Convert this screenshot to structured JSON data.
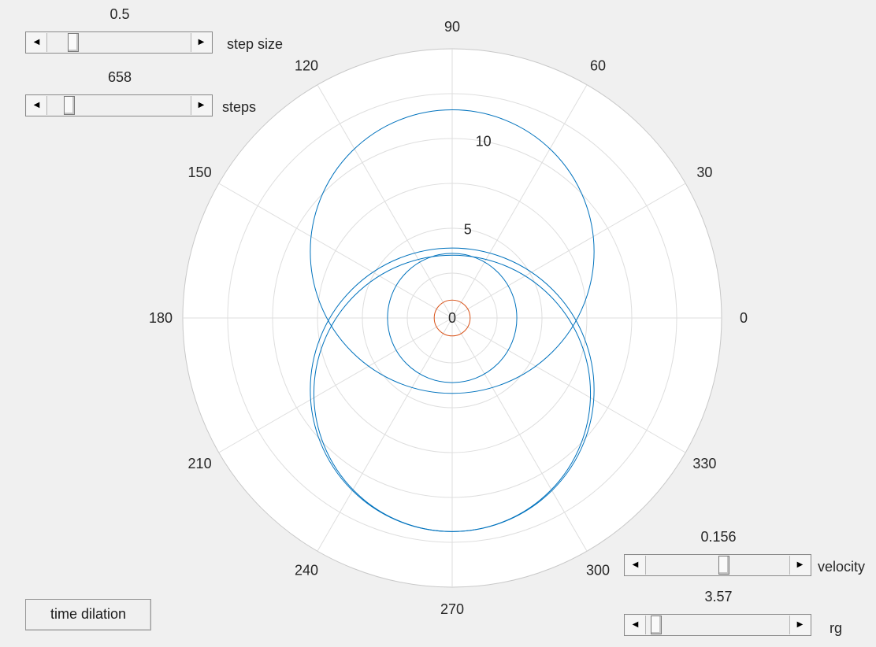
{
  "controls": {
    "step_size": {
      "value_text": "0.5",
      "caption": "step size",
      "position": 0.15
    },
    "steps": {
      "value_text": "658",
      "caption": "steps",
      "position": 0.12
    },
    "velocity": {
      "value_text": "0.156",
      "caption": "velocity",
      "position": 0.55
    },
    "rg": {
      "value_text": "3.57",
      "caption": "rg",
      "position": 0.03
    }
  },
  "buttons": {
    "time_dilation": "time dilation"
  },
  "colors": {
    "orbit": "#0072bd",
    "horizon": "#d95319",
    "grid": "#dedede",
    "axes_bg": "#ffffff",
    "figure_bg": "#f0f0f0"
  },
  "chart_data": {
    "type": "polar",
    "theta_ticks": [
      "0",
      "30",
      "60",
      "90",
      "120",
      "150",
      "180",
      "210",
      "240",
      "270",
      "300",
      "330"
    ],
    "r_ticks": [
      "0",
      "5",
      "10"
    ],
    "rlim": [
      0,
      15
    ],
    "grid": true,
    "series": [
      {
        "kind": "orbit",
        "segments": [
          {
            "cx": 0,
            "cy": 3.7,
            "r": 7.9
          },
          {
            "cx": 0,
            "cy": -4.2,
            "r": 7.7
          },
          {
            "cx": 0,
            "cy": -4.0,
            "r": 7.9
          },
          {
            "cx": 0,
            "cy": 0,
            "r": 3.6
          }
        ]
      },
      {
        "kind": "horizon",
        "segments": [
          {
            "cx": 0,
            "cy": 0,
            "r": 1.0
          }
        ]
      }
    ]
  }
}
